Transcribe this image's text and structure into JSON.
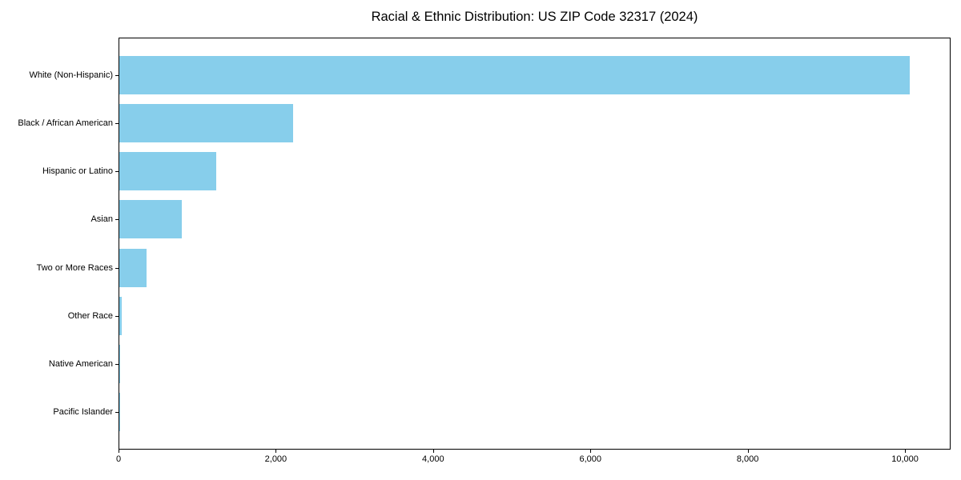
{
  "figure": {
    "title": "Racial & Ethnic Distribution: US ZIP Code 32317 (2024)"
  },
  "colors": {
    "bar": "#87CEEB",
    "axis": "#000000",
    "text": "#000000",
    "background": "#ffffff"
  },
  "chart_data": {
    "type": "bar",
    "orientation": "horizontal",
    "title": "Racial & Ethnic Distribution: US ZIP Code 32317 (2024)",
    "xlabel": "",
    "ylabel": "",
    "categories": [
      "White (Non-Hispanic)",
      "Black / African American",
      "Hispanic or Latino",
      "Asian",
      "Two or More Races",
      "Other Race",
      "Native American",
      "Pacific Islander"
    ],
    "values": [
      10050,
      2210,
      1230,
      790,
      350,
      30,
      12,
      4
    ],
    "xlim": [
      0,
      10580
    ],
    "xticks": [
      0,
      2000,
      4000,
      6000,
      8000,
      10000
    ],
    "xtick_labels": [
      "0",
      "2,000",
      "4,000",
      "6,000",
      "8,000",
      "10,000"
    ],
    "grid": false,
    "legend": null
  }
}
